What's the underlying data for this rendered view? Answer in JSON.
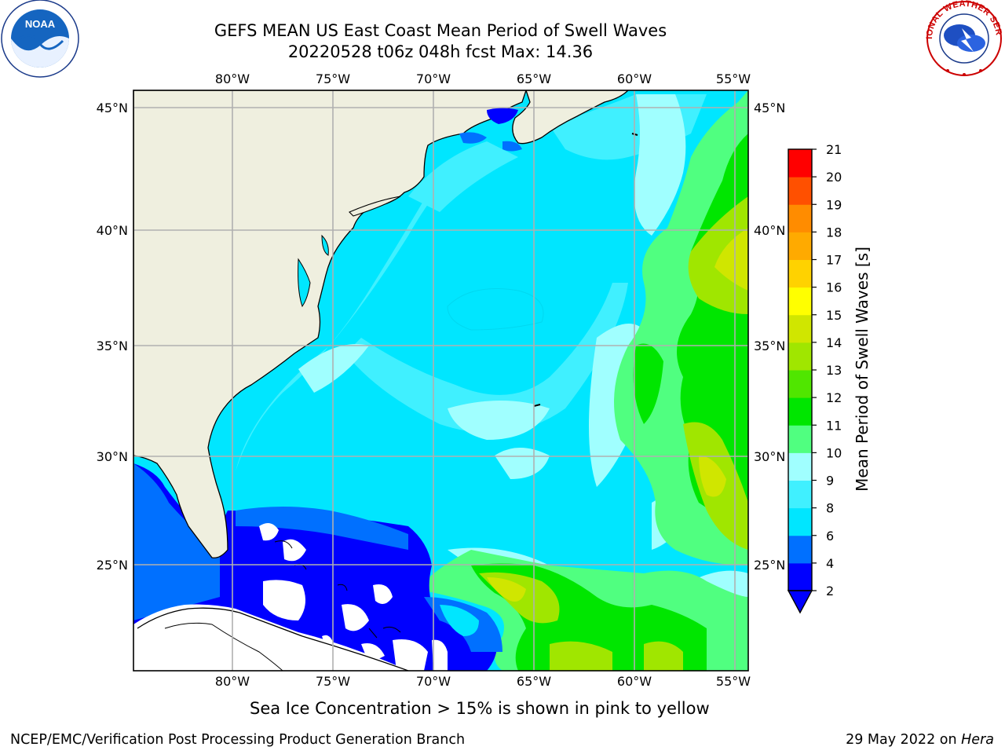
{
  "title": {
    "line1": "GEFS MEAN US East Coast Mean Period of Swell Waves",
    "line2": "20220528 t06z 048h fcst   Max: 14.36"
  },
  "logos": {
    "left": {
      "icon": "noaa-logo",
      "text": "NOAA"
    },
    "right": {
      "icon": "national-weather-service-logo",
      "text": "NATIONAL WEATHER SERVICE"
    }
  },
  "map": {
    "longitude_labels": [
      "80°W",
      "75°W",
      "70°W",
      "65°W",
      "60°W",
      "55°W"
    ],
    "latitude_labels": [
      "45°N",
      "40°N",
      "35°N",
      "30°N",
      "25°N"
    ],
    "land_color": "#efefdf",
    "coast_color": "#000000",
    "grid_color": "#b0b0b0"
  },
  "colorbar": {
    "title": "Mean Period of Swell Waves [s]",
    "levels": [
      "2",
      "4",
      "6",
      "8",
      "9",
      "10",
      "11",
      "12",
      "13",
      "14",
      "15",
      "16",
      "17",
      "18",
      "19",
      "20",
      "21"
    ],
    "colors": [
      "#0000ff",
      "#0070ff",
      "#00e6ff",
      "#40f0ff",
      "#a0ffff",
      "#50ff80",
      "#00e600",
      "#50e600",
      "#a0e600",
      "#d0e600",
      "#ffff00",
      "#ffd200",
      "#ffaa00",
      "#ff8c00",
      "#ff5000",
      "#ff0000"
    ],
    "extend_color": "#0000ff"
  },
  "caption": "Sea Ice Concentration > 15% is shown in pink to yellow",
  "footer": {
    "left": "NCEP/EMC/Verification Post Processing Product Generation Branch",
    "date": "29 May 2022 on ",
    "machine": "Hera"
  }
}
